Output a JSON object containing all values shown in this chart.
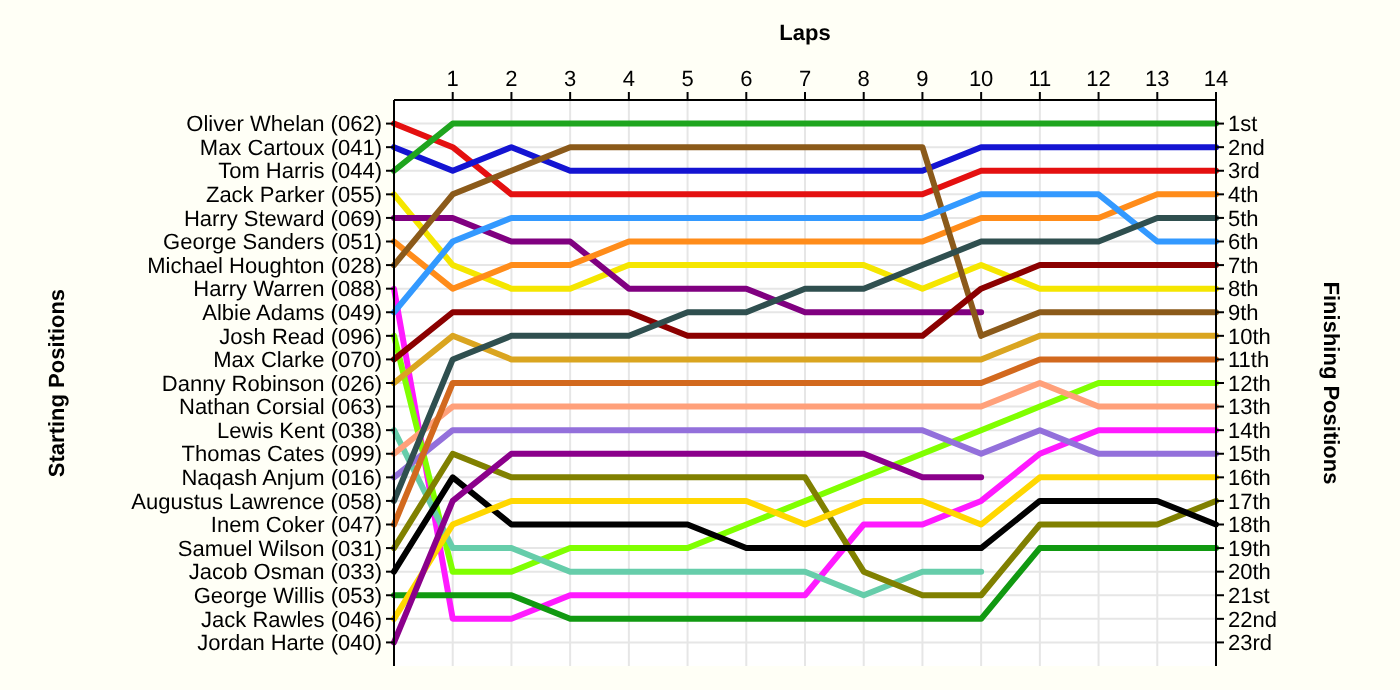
{
  "chart_data": {
    "type": "line",
    "xlabel": "Laps",
    "y2label": "Finishing Positions",
    "x": [
      0,
      1,
      2,
      3,
      4,
      5,
      6,
      7,
      8,
      9,
      10,
      11,
      12,
      13,
      14
    ],
    "xlim": [
      0,
      14
    ],
    "xticks": [
      1,
      2,
      3,
      4,
      5,
      6,
      7,
      8,
      9,
      10,
      11,
      12,
      13,
      14
    ],
    "annotations": [
      "Starting Positions",
      "Oliver Whelan (062)",
      "Max Cartoux (041)",
      "Tom Harris (044)",
      "Zack Parker (055)",
      "Harry Steward (069)",
      "George Sanders (051)",
      "Michael Houghton (028)",
      "Harry Warren (088)",
      "Albie Adams (049)",
      "Josh Read (096)",
      "Max Clarke (070)",
      "Danny Robinson (026)",
      "Nathan Corsial (063)",
      "Lewis Kent (038)",
      "Thomas Cates (099)",
      "Naqash Anjum (016)",
      "Augustus Lawrence (058)",
      "Inem Coker (047)",
      "Samuel Wilson (031)",
      "Jacob Osman (033)",
      "George Willis (053)",
      "Jack Rawles (046)",
      "Jordan Harte (040)"
    ],
    "y2lim": [
      24,
      0
    ],
    "y2ticks": [
      {
        "value": 1,
        "label": "1st"
      },
      {
        "value": 2,
        "label": "2nd"
      },
      {
        "value": 3,
        "label": "3rd"
      },
      {
        "value": 4,
        "label": "4th"
      },
      {
        "value": 5,
        "label": "5th"
      },
      {
        "value": 6,
        "label": "6th"
      },
      {
        "value": 7,
        "label": "7th"
      },
      {
        "value": 8,
        "label": "8th"
      },
      {
        "value": 9,
        "label": "9th"
      },
      {
        "value": 10,
        "label": "10th"
      },
      {
        "value": 11,
        "label": "11th"
      },
      {
        "value": 12,
        "label": "12th"
      },
      {
        "value": 13,
        "label": "13th"
      },
      {
        "value": 14,
        "label": "14th"
      },
      {
        "value": 15,
        "label": "15th"
      },
      {
        "value": 16,
        "label": "16th"
      },
      {
        "value": 17,
        "label": "17th"
      },
      {
        "value": 18,
        "label": "18th"
      },
      {
        "value": 19,
        "label": "19th"
      },
      {
        "value": 20,
        "label": "20th"
      },
      {
        "value": 21,
        "label": "21st"
      },
      {
        "value": 22,
        "label": "22nd"
      },
      {
        "value": 23,
        "label": "23rd"
      }
    ],
    "grid": true,
    "marker": "none",
    "line_style": "solid",
    "series": [
      {
        "axis": "y2",
        "color": "#e41010",
        "values": [
          1,
          2,
          4,
          4,
          4,
          4,
          4,
          4,
          4,
          4,
          3,
          3,
          3,
          3,
          3
        ]
      },
      {
        "axis": "y2",
        "color": "#1414d2",
        "values": [
          2,
          3,
          2,
          3,
          3,
          3,
          3,
          3,
          3,
          3,
          2,
          2,
          2,
          2,
          2
        ]
      },
      {
        "axis": "y2",
        "color": "#1fa51f",
        "values": [
          3,
          1,
          1,
          1,
          1,
          1,
          1,
          1,
          1,
          1,
          1,
          1,
          1,
          1,
          1
        ]
      },
      {
        "axis": "y2",
        "color": "#f5e600",
        "values": [
          4,
          7,
          8,
          8,
          7,
          7,
          7,
          7,
          7,
          8,
          7,
          8,
          8,
          8,
          8
        ]
      },
      {
        "axis": "y2",
        "color": "#800080",
        "values": [
          5,
          5,
          6,
          6,
          8,
          8,
          8,
          9,
          9,
          9,
          9,
          null,
          null,
          null,
          null
        ]
      },
      {
        "axis": "y2",
        "color": "#ff8c1a",
        "values": [
          6,
          8,
          7,
          7,
          6,
          6,
          6,
          6,
          6,
          6,
          5,
          5,
          5,
          4,
          4
        ]
      },
      {
        "axis": "y2",
        "color": "#8b5a1a",
        "values": [
          7,
          4,
          3,
          2,
          2,
          2,
          2,
          2,
          2,
          2,
          10,
          9,
          9,
          9,
          9
        ]
      },
      {
        "axis": "y2",
        "color": "#ff1aff",
        "values": [
          8,
          22,
          22,
          21,
          21,
          21,
          21,
          21,
          18,
          18,
          17,
          15,
          14,
          14,
          14
        ]
      },
      {
        "axis": "y2",
        "color": "#3399ff",
        "values": [
          9,
          6,
          5,
          5,
          5,
          5,
          5,
          5,
          5,
          5,
          4,
          4,
          4,
          6,
          6
        ]
      },
      {
        "axis": "y2",
        "color": "#80ff00",
        "values": [
          10,
          20,
          20,
          19,
          19,
          19,
          18,
          17,
          16,
          15,
          14,
          13,
          12,
          12,
          12
        ]
      },
      {
        "axis": "y2",
        "color": "#8b0000",
        "values": [
          11,
          9,
          9,
          9,
          9,
          10,
          10,
          10,
          10,
          10,
          8,
          7,
          7,
          7,
          7
        ]
      },
      {
        "axis": "y2",
        "color": "#daa520",
        "values": [
          12,
          10,
          11,
          11,
          11,
          11,
          11,
          11,
          11,
          11,
          11,
          10,
          10,
          10,
          10
        ]
      },
      {
        "axis": "y2",
        "color": "#66cdaa",
        "values": [
          14,
          19,
          19,
          20,
          20,
          20,
          20,
          20,
          21,
          20,
          20,
          null,
          null,
          null,
          null
        ]
      },
      {
        "axis": "y2",
        "color": "#ffa07a",
        "values": [
          15,
          13,
          13,
          13,
          13,
          13,
          13,
          13,
          13,
          13,
          13,
          12,
          13,
          13,
          13
        ]
      },
      {
        "axis": "y2",
        "color": "#9370db",
        "values": [
          16,
          14,
          14,
          14,
          14,
          14,
          14,
          14,
          14,
          14,
          15,
          14,
          15,
          15,
          15
        ]
      },
      {
        "axis": "y2",
        "color": "#2f4f4f",
        "values": [
          17,
          11,
          10,
          10,
          10,
          9,
          9,
          8,
          8,
          7,
          6,
          6,
          6,
          5,
          5
        ]
      },
      {
        "axis": "y2",
        "color": "#d2691e",
        "values": [
          18,
          12,
          12,
          12,
          12,
          12,
          12,
          12,
          12,
          12,
          12,
          11,
          11,
          11,
          11
        ]
      },
      {
        "axis": "y2",
        "color": "#808000",
        "values": [
          19,
          15,
          16,
          16,
          16,
          16,
          16,
          16,
          20,
          21,
          21,
          18,
          18,
          18,
          17
        ]
      },
      {
        "axis": "y2",
        "color": "#000000",
        "values": [
          20,
          16,
          18,
          18,
          18,
          18,
          19,
          19,
          19,
          19,
          19,
          17,
          17,
          17,
          18
        ]
      },
      {
        "axis": "y2",
        "color": "#119911",
        "values": [
          21,
          21,
          21,
          22,
          22,
          22,
          22,
          22,
          22,
          22,
          22,
          19,
          19,
          19,
          19
        ]
      },
      {
        "axis": "y2",
        "color": "#ffd700",
        "values": [
          22,
          18,
          17,
          17,
          17,
          17,
          17,
          18,
          17,
          17,
          18,
          16,
          16,
          16,
          16
        ]
      },
      {
        "axis": "y2",
        "color": "#8b008b",
        "values": [
          23,
          17,
          15,
          15,
          15,
          15,
          15,
          15,
          15,
          16,
          16,
          null,
          null,
          null,
          null
        ]
      }
    ]
  }
}
